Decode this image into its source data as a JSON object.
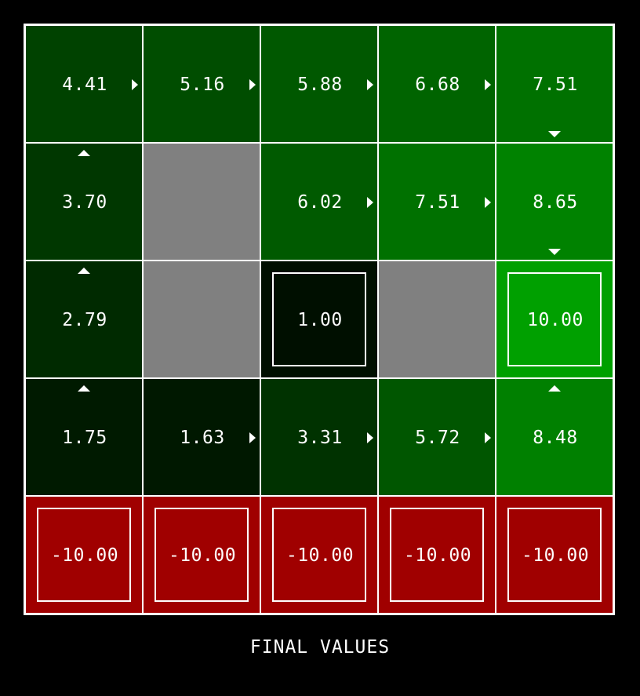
{
  "caption": "FINAL VALUES",
  "colors": {
    "background": "#000000",
    "gridline": "#ffffff",
    "wall": "#808080",
    "negative_terminal": "#a00000",
    "text": "#ffffff"
  },
  "grid": {
    "rows": 5,
    "cols": 5,
    "cells": [
      {
        "row": 0,
        "col": 0,
        "type": "state",
        "value": "4.41",
        "policy": "right",
        "fill": "#004200"
      },
      {
        "row": 0,
        "col": 1,
        "type": "state",
        "value": "5.16",
        "policy": "right",
        "fill": "#004d00"
      },
      {
        "row": 0,
        "col": 2,
        "type": "state",
        "value": "5.88",
        "policy": "right",
        "fill": "#005800"
      },
      {
        "row": 0,
        "col": 3,
        "type": "state",
        "value": "6.68",
        "policy": "right",
        "fill": "#006400"
      },
      {
        "row": 0,
        "col": 4,
        "type": "state",
        "value": "7.51",
        "policy": "down",
        "fill": "#007100"
      },
      {
        "row": 1,
        "col": 0,
        "type": "state",
        "value": "3.70",
        "policy": "up",
        "fill": "#003700"
      },
      {
        "row": 1,
        "col": 1,
        "type": "wall"
      },
      {
        "row": 1,
        "col": 2,
        "type": "state",
        "value": "6.02",
        "policy": "right",
        "fill": "#005a00"
      },
      {
        "row": 1,
        "col": 3,
        "type": "state",
        "value": "7.51",
        "policy": "right",
        "fill": "#007100"
      },
      {
        "row": 1,
        "col": 4,
        "type": "state",
        "value": "8.65",
        "policy": "down",
        "fill": "#008200"
      },
      {
        "row": 2,
        "col": 0,
        "type": "state",
        "value": "2.79",
        "policy": "up",
        "fill": "#002a00"
      },
      {
        "row": 2,
        "col": 1,
        "type": "wall"
      },
      {
        "row": 2,
        "col": 2,
        "type": "terminal",
        "value": "1.00",
        "fill": "#000f00"
      },
      {
        "row": 2,
        "col": 3,
        "type": "wall"
      },
      {
        "row": 2,
        "col": 4,
        "type": "terminal",
        "value": "10.00",
        "fill": "#00a000"
      },
      {
        "row": 3,
        "col": 0,
        "type": "state",
        "value": "1.75",
        "policy": "up",
        "fill": "#001a00"
      },
      {
        "row": 3,
        "col": 1,
        "type": "state",
        "value": "1.63",
        "policy": "right",
        "fill": "#001800"
      },
      {
        "row": 3,
        "col": 2,
        "type": "state",
        "value": "3.31",
        "policy": "right",
        "fill": "#003200"
      },
      {
        "row": 3,
        "col": 3,
        "type": "state",
        "value": "5.72",
        "policy": "right",
        "fill": "#005600"
      },
      {
        "row": 3,
        "col": 4,
        "type": "state",
        "value": "8.48",
        "policy": "up",
        "fill": "#008000"
      },
      {
        "row": 4,
        "col": 0,
        "type": "terminal",
        "value": "-10.00",
        "fill": "#a00000"
      },
      {
        "row": 4,
        "col": 1,
        "type": "terminal",
        "value": "-10.00",
        "fill": "#a00000"
      },
      {
        "row": 4,
        "col": 2,
        "type": "terminal",
        "value": "-10.00",
        "fill": "#a00000"
      },
      {
        "row": 4,
        "col": 3,
        "type": "terminal",
        "value": "-10.00",
        "fill": "#a00000"
      },
      {
        "row": 4,
        "col": 4,
        "type": "terminal",
        "value": "-10.00",
        "fill": "#a00000"
      }
    ]
  }
}
